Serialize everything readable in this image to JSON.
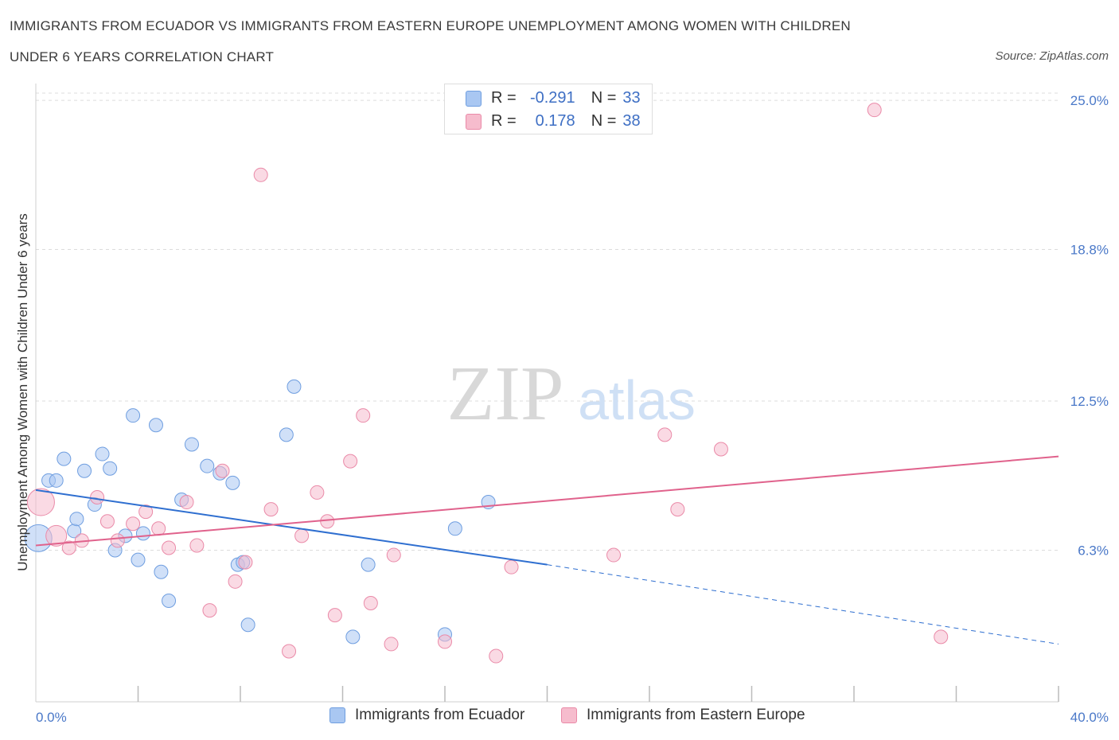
{
  "title_line1": "IMMIGRANTS FROM ECUADOR VS IMMIGRANTS FROM EASTERN EUROPE UNEMPLOYMENT AMONG WOMEN WITH CHILDREN",
  "title_line2": "UNDER 6 YEARS CORRELATION CHART",
  "source": "Source: ZipAtlas.com",
  "watermark": {
    "zip": "ZIP",
    "atlas": "atlas"
  },
  "colors": {
    "ecuador_fill": "#a9c7f2",
    "ecuador_stroke": "#6f9ee0",
    "ecuador_line": "#2f6fd0",
    "ee_fill": "#f6bccd",
    "ee_stroke": "#ea8aa8",
    "ee_line": "#e0628c",
    "tick_text": "#4a78c8",
    "grid": "#dcdcdc"
  },
  "stats": {
    "r_label": "R =",
    "n_label": "N =",
    "rows": [
      {
        "r": "-0.291",
        "n": "33"
      },
      {
        "r": "0.178",
        "n": "38"
      }
    ]
  },
  "chart_data": {
    "type": "scatter",
    "title": "IMMIGRANTS FROM ECUADOR VS IMMIGRANTS FROM EASTERN EUROPE UNEMPLOYMENT AMONG WOMEN WITH CHILDREN UNDER 6 YEARS CORRELATION CHART",
    "xlabel": "",
    "ylabel": "Unemployment Among Women with Children Under 6 years",
    "xlim": [
      0,
      40
    ],
    "ylim": [
      0,
      25.5
    ],
    "x_tick_labels": [
      "0.0%",
      "40.0%"
    ],
    "y_ticks": [
      {
        "value": 6.3,
        "label": "6.3%"
      },
      {
        "value": 12.5,
        "label": "12.5%"
      },
      {
        "value": 18.8,
        "label": "18.8%"
      },
      {
        "value": 25.0,
        "label": "25.0%"
      }
    ],
    "grid": true,
    "legend_position": "bottom",
    "series": [
      {
        "name": "Immigrants from Ecuador",
        "r": -0.291,
        "n": 33,
        "trend": {
          "x_start": 0,
          "y_start": 8.8,
          "x_solid_end": 20,
          "y_solid_end": 5.7,
          "x_end": 40,
          "y_end": 2.4
        },
        "points": [
          {
            "x": 0.1,
            "y": 6.8,
            "size": "large"
          },
          {
            "x": 0.5,
            "y": 9.2
          },
          {
            "x": 0.8,
            "y": 9.2
          },
          {
            "x": 1.1,
            "y": 10.1
          },
          {
            "x": 1.5,
            "y": 7.1
          },
          {
            "x": 1.6,
            "y": 7.6
          },
          {
            "x": 1.9,
            "y": 9.6
          },
          {
            "x": 2.3,
            "y": 8.2
          },
          {
            "x": 2.6,
            "y": 10.3
          },
          {
            "x": 2.9,
            "y": 9.7
          },
          {
            "x": 3.1,
            "y": 6.3
          },
          {
            "x": 3.5,
            "y": 6.9
          },
          {
            "x": 3.8,
            "y": 11.9
          },
          {
            "x": 4.0,
            "y": 5.9
          },
          {
            "x": 4.2,
            "y": 7.0
          },
          {
            "x": 4.7,
            "y": 11.5
          },
          {
            "x": 4.9,
            "y": 5.4
          },
          {
            "x": 5.2,
            "y": 4.2
          },
          {
            "x": 5.7,
            "y": 8.4
          },
          {
            "x": 6.1,
            "y": 10.7
          },
          {
            "x": 6.7,
            "y": 9.8
          },
          {
            "x": 7.2,
            "y": 9.5
          },
          {
            "x": 7.7,
            "y": 9.1
          },
          {
            "x": 7.9,
            "y": 5.7
          },
          {
            "x": 8.3,
            "y": 3.2
          },
          {
            "x": 8.1,
            "y": 5.8
          },
          {
            "x": 9.8,
            "y": 11.1
          },
          {
            "x": 10.1,
            "y": 13.1
          },
          {
            "x": 12.4,
            "y": 2.7
          },
          {
            "x": 13.0,
            "y": 5.7
          },
          {
            "x": 16.0,
            "y": 2.8
          },
          {
            "x": 16.4,
            "y": 7.2
          },
          {
            "x": 17.7,
            "y": 8.3
          }
        ]
      },
      {
        "name": "Immigrants from Eastern Europe",
        "r": 0.178,
        "n": 38,
        "trend": {
          "x_start": 0,
          "y_start": 6.5,
          "x_end": 40,
          "y_end": 10.2
        },
        "points": [
          {
            "x": 0.2,
            "y": 8.3,
            "size": "large"
          },
          {
            "x": 0.8,
            "y": 6.9,
            "size": "medium"
          },
          {
            "x": 1.3,
            "y": 6.4
          },
          {
            "x": 1.8,
            "y": 6.7
          },
          {
            "x": 2.4,
            "y": 8.5
          },
          {
            "x": 2.8,
            "y": 7.5
          },
          {
            "x": 3.2,
            "y": 6.7
          },
          {
            "x": 3.8,
            "y": 7.4
          },
          {
            "x": 4.3,
            "y": 7.9
          },
          {
            "x": 4.8,
            "y": 7.2
          },
          {
            "x": 5.2,
            "y": 6.4
          },
          {
            "x": 5.9,
            "y": 8.3
          },
          {
            "x": 6.3,
            "y": 6.5
          },
          {
            "x": 6.8,
            "y": 3.8
          },
          {
            "x": 7.3,
            "y": 9.6
          },
          {
            "x": 7.8,
            "y": 5.0
          },
          {
            "x": 8.2,
            "y": 5.8
          },
          {
            "x": 8.8,
            "y": 21.9
          },
          {
            "x": 9.2,
            "y": 8.0
          },
          {
            "x": 9.9,
            "y": 2.1
          },
          {
            "x": 10.4,
            "y": 6.9
          },
          {
            "x": 11.0,
            "y": 8.7
          },
          {
            "x": 11.4,
            "y": 7.5
          },
          {
            "x": 11.7,
            "y": 3.6
          },
          {
            "x": 12.3,
            "y": 10.0
          },
          {
            "x": 12.8,
            "y": 11.9
          },
          {
            "x": 13.1,
            "y": 4.1
          },
          {
            "x": 14.0,
            "y": 6.1
          },
          {
            "x": 13.9,
            "y": 2.4
          },
          {
            "x": 16.0,
            "y": 2.5
          },
          {
            "x": 18.0,
            "y": 1.9
          },
          {
            "x": 18.6,
            "y": 5.6
          },
          {
            "x": 22.6,
            "y": 6.1
          },
          {
            "x": 24.6,
            "y": 11.1
          },
          {
            "x": 25.1,
            "y": 8.0
          },
          {
            "x": 26.8,
            "y": 10.5
          },
          {
            "x": 32.8,
            "y": 24.6
          },
          {
            "x": 35.4,
            "y": 2.7
          }
        ]
      }
    ]
  }
}
